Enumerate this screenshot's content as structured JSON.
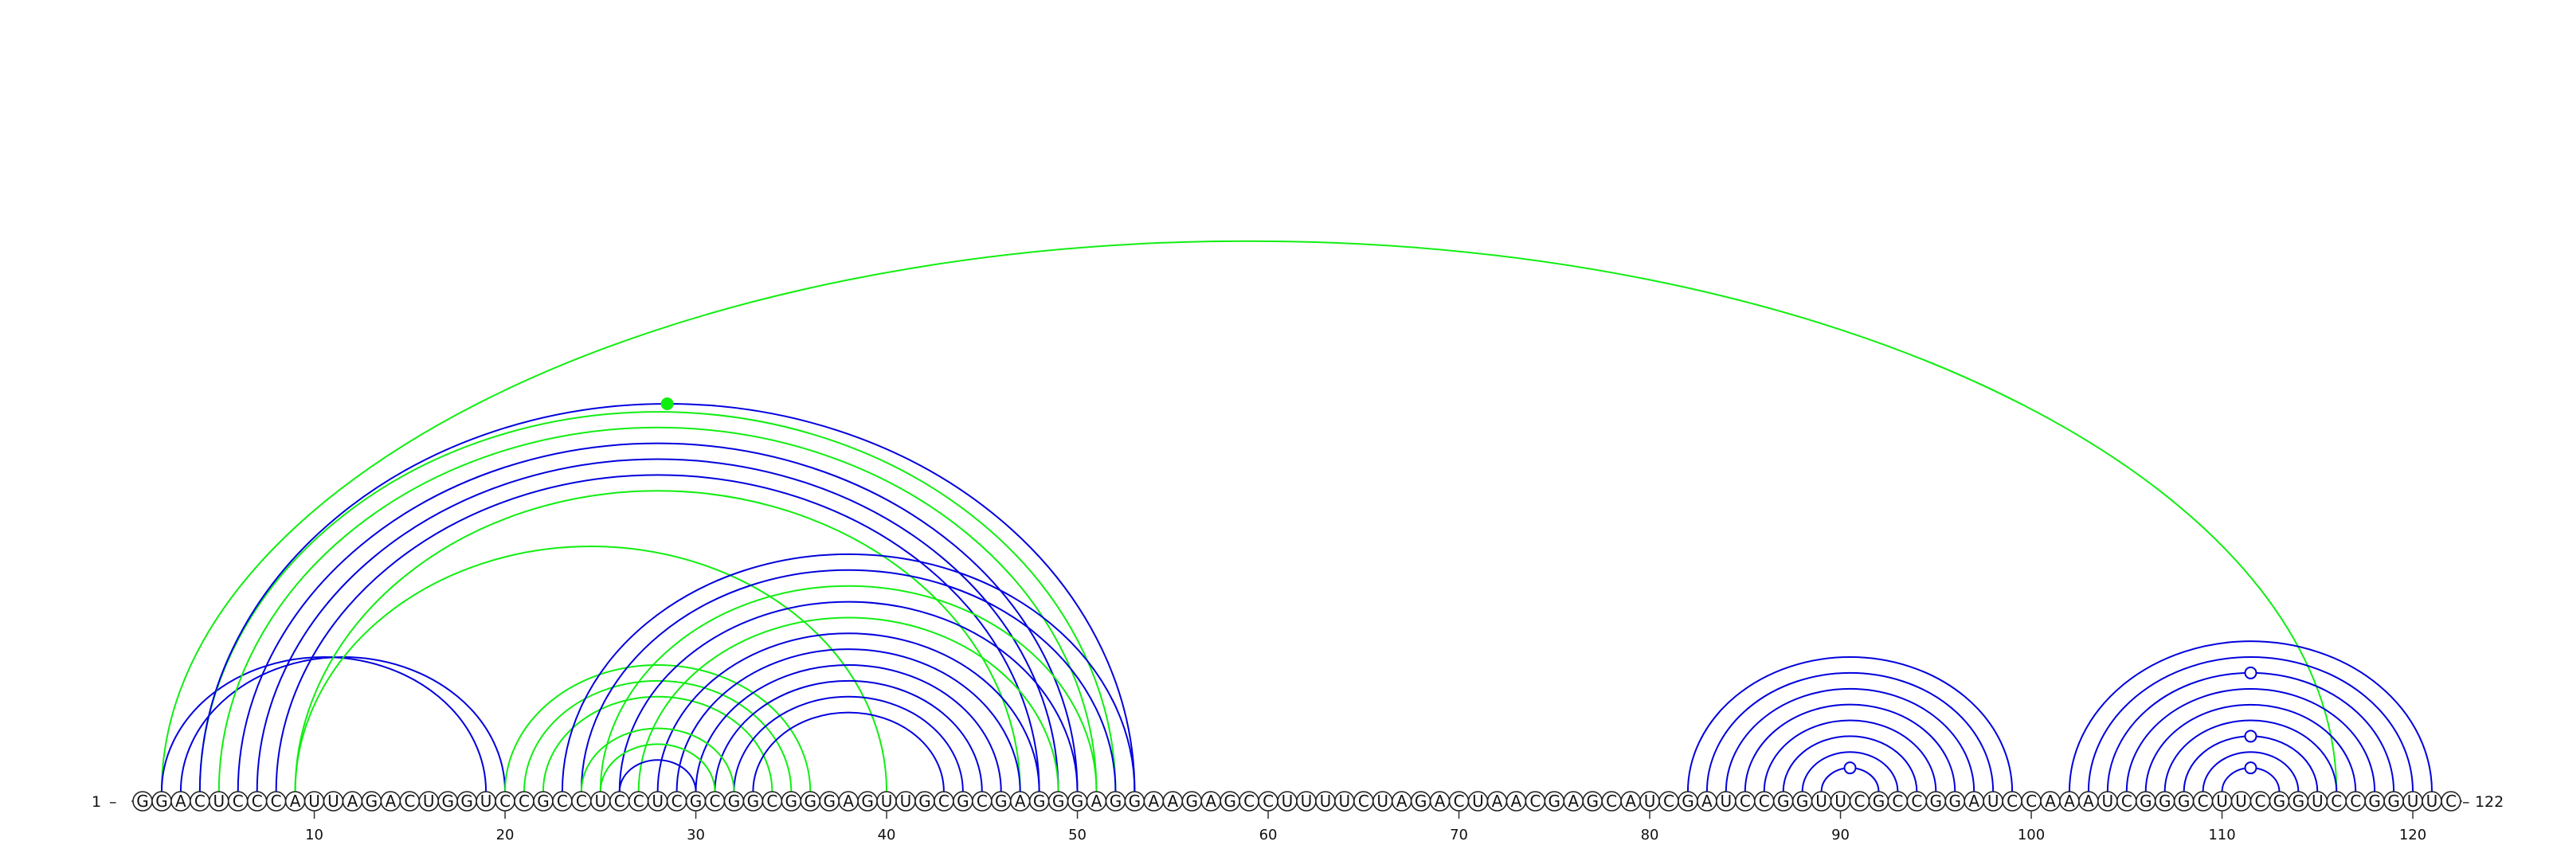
{
  "sequence": "GGACUCCCAUUAGACUGGUCCGCCUCCUCGCGGCGGGAGUUGCGCGAGGGAGGAAGAGCCUUUUCUAGACUAACGAGCAUCGAUCCGGUUCGCCGGAUCCAAAUCGGGCUUCGGUCCGGUUC",
  "start_label": "1",
  "end_label": "122",
  "ticks": [
    {
      "pos": 10,
      "label": "10"
    },
    {
      "pos": 20,
      "label": "20"
    },
    {
      "pos": 30,
      "label": "30"
    },
    {
      "pos": 40,
      "label": "40"
    },
    {
      "pos": 50,
      "label": "50"
    },
    {
      "pos": 60,
      "label": "60"
    },
    {
      "pos": 70,
      "label": "70"
    },
    {
      "pos": 80,
      "label": "80"
    },
    {
      "pos": 90,
      "label": "90"
    },
    {
      "pos": 100,
      "label": "100"
    },
    {
      "pos": 110,
      "label": "110"
    },
    {
      "pos": 120,
      "label": "120"
    }
  ],
  "colors": {
    "predicted": "#0000dd",
    "reference": "#11ee11",
    "backbone": "#333333"
  },
  "arcs": [
    {
      "i": 2,
      "j": 116,
      "color": "reference",
      "width": 5
    },
    {
      "i": 2,
      "j": 19,
      "color": "predicted",
      "width": 2
    },
    {
      "i": 3,
      "j": 20,
      "color": "predicted",
      "width": 2
    },
    {
      "i": 4,
      "j": 52,
      "color": "reference",
      "width": 2
    },
    {
      "i": 5,
      "j": 51,
      "color": "reference",
      "width": 4
    },
    {
      "i": 6,
      "j": 50,
      "color": "predicted",
      "width": 3
    },
    {
      "i": 7,
      "j": 49,
      "color": "predicted",
      "width": 4
    },
    {
      "i": 8,
      "j": 48,
      "color": "predicted",
      "width": 3
    },
    {
      "i": 9,
      "j": 47,
      "color": "reference",
      "width": 3
    },
    {
      "i": 9,
      "j": 40,
      "color": "reference",
      "width": 2
    },
    {
      "i": 4,
      "j": 53,
      "color": "predicted",
      "width": 2
    },
    {
      "i": 20,
      "j": 36,
      "color": "reference",
      "width": 4
    },
    {
      "i": 21,
      "j": 35,
      "color": "reference",
      "width": 4
    },
    {
      "i": 22,
      "j": 34,
      "color": "reference",
      "width": 3
    },
    {
      "i": 23,
      "j": 53,
      "color": "predicted",
      "width": 2
    },
    {
      "i": 24,
      "j": 52,
      "color": "predicted",
      "width": 2
    },
    {
      "i": 25,
      "j": 51,
      "color": "reference",
      "width": 2
    },
    {
      "i": 26,
      "j": 50,
      "color": "predicted",
      "width": 2
    },
    {
      "i": 27,
      "j": 49,
      "color": "reference",
      "width": 2
    },
    {
      "i": 28,
      "j": 48,
      "color": "predicted",
      "width": 2
    },
    {
      "i": 29,
      "j": 47,
      "color": "predicted",
      "width": 2
    },
    {
      "i": 30,
      "j": 46,
      "color": "predicted",
      "width": 2
    },
    {
      "i": 31,
      "j": 45,
      "color": "predicted",
      "width": 2
    },
    {
      "i": 32,
      "j": 44,
      "color": "predicted",
      "width": 2
    },
    {
      "i": 33,
      "j": 43,
      "color": "predicted",
      "width": 2
    },
    {
      "i": 24,
      "j": 32,
      "color": "reference",
      "width": 3
    },
    {
      "i": 25,
      "j": 31,
      "color": "reference",
      "width": 3
    },
    {
      "i": 26,
      "j": 30,
      "color": "predicted",
      "width": 2
    },
    {
      "i": 82,
      "j": 99,
      "color": "predicted",
      "width": 2
    },
    {
      "i": 83,
      "j": 98,
      "color": "predicted",
      "width": 2
    },
    {
      "i": 84,
      "j": 97,
      "color": "predicted",
      "width": 2
    },
    {
      "i": 85,
      "j": 96,
      "color": "predicted",
      "width": 2
    },
    {
      "i": 86,
      "j": 95,
      "color": "predicted",
      "width": 2
    },
    {
      "i": 87,
      "j": 94,
      "color": "predicted",
      "width": 2
    },
    {
      "i": 88,
      "j": 93,
      "color": "predicted",
      "width": 2
    },
    {
      "i": 89,
      "j": 92,
      "color": "predicted",
      "width": 2
    },
    {
      "i": 102,
      "j": 121,
      "color": "predicted",
      "width": 2
    },
    {
      "i": 103,
      "j": 120,
      "color": "predicted",
      "width": 2
    },
    {
      "i": 104,
      "j": 119,
      "color": "predicted",
      "width": 2
    },
    {
      "i": 105,
      "j": 118,
      "color": "predicted",
      "width": 2
    },
    {
      "i": 106,
      "j": 117,
      "color": "predicted",
      "width": 2
    },
    {
      "i": 107,
      "j": 116,
      "color": "predicted",
      "width": 2
    },
    {
      "i": 108,
      "j": 115,
      "color": "predicted",
      "width": 2
    },
    {
      "i": 109,
      "j": 114,
      "color": "predicted",
      "width": 2
    },
    {
      "i": 110,
      "j": 113,
      "color": "predicted",
      "width": 2
    }
  ]
}
